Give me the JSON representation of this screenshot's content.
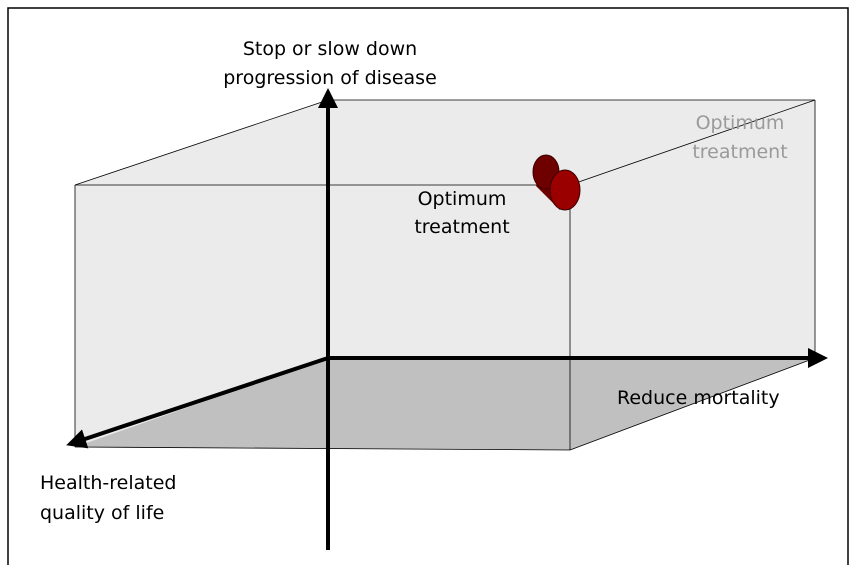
{
  "axes": {
    "vertical": {
      "label": [
        "Stop or slow down",
        "progression of disease"
      ]
    },
    "horizontal": {
      "label": [
        "Reduce mortality"
      ]
    },
    "depth": {
      "label": [
        "Health-related",
        "quality of life"
      ]
    }
  },
  "point": {
    "label": [
      "Optimum",
      "treatment"
    ]
  },
  "projection": {
    "label": [
      "Optimum",
      "treatment"
    ]
  }
}
